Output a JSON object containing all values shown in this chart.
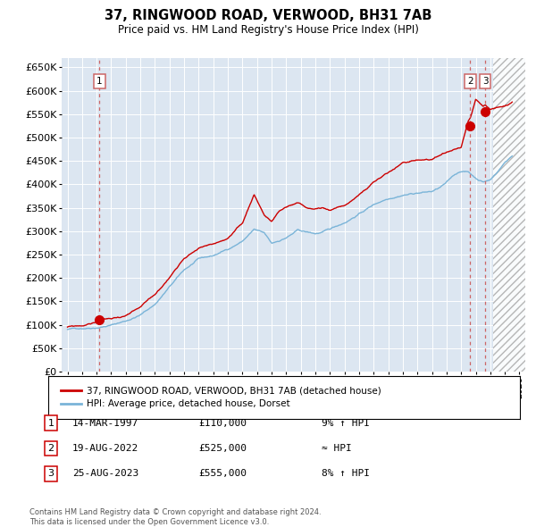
{
  "title": "37, RINGWOOD ROAD, VERWOOD, BH31 7AB",
  "subtitle": "Price paid vs. HM Land Registry's House Price Index (HPI)",
  "ylim": [
    0,
    670000
  ],
  "yticks": [
    0,
    50000,
    100000,
    150000,
    200000,
    250000,
    300000,
    350000,
    400000,
    450000,
    500000,
    550000,
    600000,
    650000
  ],
  "ytick_labels": [
    "£0",
    "£50K",
    "£100K",
    "£150K",
    "£200K",
    "£250K",
    "£300K",
    "£350K",
    "£400K",
    "£450K",
    "£500K",
    "£550K",
    "£600K",
    "£650K"
  ],
  "xlim_start": 1994.6,
  "xlim_end": 2026.4,
  "bg_color": "#dce6f1",
  "grid_color": "#ffffff",
  "hpi_line_color": "#7ab4d8",
  "price_line_color": "#cc0000",
  "sale_marker_color": "#cc0000",
  "dashed_line_color": "#cc6666",
  "sale1_year": 1997.2,
  "sale1_price": 110000,
  "sale1_label": "1",
  "sale2_year": 2022.63,
  "sale2_price": 525000,
  "sale2_label": "2",
  "sale3_year": 2023.65,
  "sale3_price": 555000,
  "sale3_label": "3",
  "hatch_start": 2024.17,
  "legend_line1": "37, RINGWOOD ROAD, VERWOOD, BH31 7AB (detached house)",
  "legend_line2": "HPI: Average price, detached house, Dorset",
  "table_entries": [
    {
      "num": "1",
      "date": "14-MAR-1997",
      "price": "£110,000",
      "rel": "9% ↑ HPI"
    },
    {
      "num": "2",
      "date": "19-AUG-2022",
      "price": "£525,000",
      "rel": "≈ HPI"
    },
    {
      "num": "3",
      "date": "25-AUG-2023",
      "price": "£555,000",
      "rel": "8% ↑ HPI"
    }
  ],
  "footer": "Contains HM Land Registry data © Crown copyright and database right 2024.\nThis data is licensed under the Open Government Licence v3.0."
}
